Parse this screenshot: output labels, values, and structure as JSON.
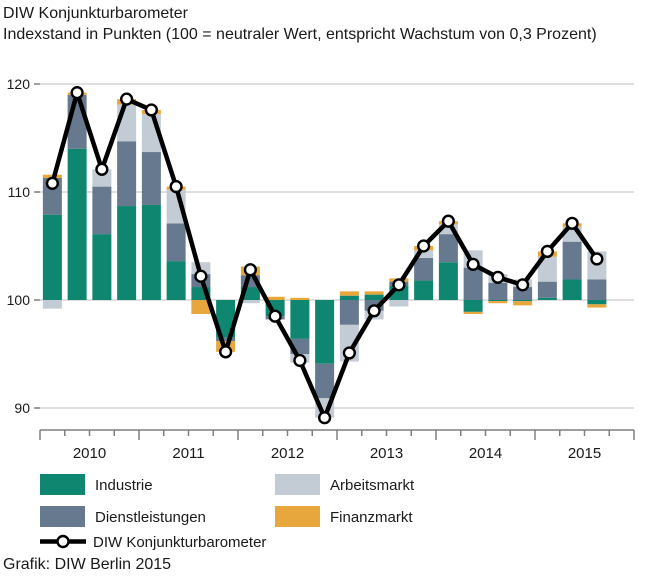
{
  "title": "DIW Konjunkturbarometer",
  "subtitle": "Indexstand in Punkten (100 = neutraler Wert, entspricht Wachstum von 0,3 Prozent)",
  "footer": "Grafik: DIW Berlin 2015",
  "colors": {
    "industrie": "#0f8670",
    "dienstleistungen": "#66798e",
    "arbeitsmarkt": "#c3ccd5",
    "finanzmarkt": "#e8a73c",
    "line": "#000000",
    "marker_fill": "#ffffff",
    "grid": "#bfbfbf",
    "axis": "#7f7f7f",
    "text": "#1a1a1a"
  },
  "legend": {
    "items": [
      {
        "key": "industrie",
        "label": "Industrie"
      },
      {
        "key": "dienstleistungen",
        "label": "Dienstleistungen"
      },
      {
        "key": "arbeitsmarkt",
        "label": "Arbeitsmarkt"
      },
      {
        "key": "finanzmarkt",
        "label": "Finanzmarkt"
      },
      {
        "key": "line",
        "label": "DIW Konjunkturbarometer"
      }
    ]
  },
  "chart_data": {
    "type": "bar",
    "subtype": "stacked-bars-with-line-overlay",
    "title": "DIW Konjunkturbarometer",
    "ylabel": "Indexstand in Punkten",
    "baseline": 100,
    "yticks": [
      90,
      100,
      110,
      120
    ],
    "ylim": [
      87,
      121
    ],
    "grid": "horizontal",
    "legend_position": "bottom",
    "years": [
      "2010",
      "2011",
      "2012",
      "2013",
      "2014",
      "2015"
    ],
    "x": [
      "2010 Q1",
      "2010 Q2",
      "2010 Q3",
      "2010 Q4",
      "2011 Q1",
      "2011 Q2",
      "2011 Q3",
      "2011 Q4",
      "2012 Q1",
      "2012 Q2",
      "2012 Q3",
      "2012 Q4",
      "2013 Q1",
      "2013 Q2",
      "2013 Q3",
      "2013 Q4",
      "2014 Q1",
      "2014 Q2",
      "2014 Q3",
      "2014 Q4",
      "2015 Q1",
      "2015 Q2",
      "2015 Q3"
    ],
    "series": [
      {
        "name": "Industrie",
        "color_key": "industrie",
        "values": [
          7.9,
          14.0,
          6.1,
          8.7,
          8.8,
          3.6,
          1.2,
          -3.5,
          1.2,
          -1.5,
          -3.6,
          -5.9,
          0.4,
          0.5,
          1.3,
          1.8,
          3.5,
          -1.1,
          -0.1,
          -0.1,
          0.2,
          1.9,
          -0.4
        ]
      },
      {
        "name": "Dienstleistungen",
        "color_key": "dienstleistungen",
        "values": [
          3.4,
          5.0,
          4.4,
          6.0,
          4.9,
          3.5,
          1.2,
          -0.3,
          1.1,
          -0.3,
          -1.4,
          -3.2,
          -2.3,
          -1.0,
          0.4,
          2.1,
          2.6,
          3.0,
          1.6,
          1.2,
          1.5,
          3.5,
          1.9
        ]
      },
      {
        "name": "Arbeitsmarkt",
        "color_key": "arbeitsmarkt",
        "values": [
          -0.8,
          0,
          1.6,
          3.4,
          3.5,
          3.1,
          1.1,
          0,
          -0.3,
          0,
          -0.8,
          -1.8,
          -3.4,
          -0.8,
          -0.6,
          0.7,
          0.9,
          1.6,
          0.8,
          0.7,
          2.3,
          1.4,
          2.6
        ]
      },
      {
        "name": "Finanzmarkt",
        "color_key": "finanzmarkt",
        "values": [
          0.3,
          0.2,
          0,
          0.5,
          0.4,
          0.3,
          -1.3,
          -1.0,
          0.8,
          0.3,
          0.2,
          0,
          0.4,
          0.3,
          0.3,
          0.4,
          0.3,
          -0.2,
          -0.2,
          -0.4,
          0.5,
          0.3,
          -0.3
        ]
      }
    ],
    "line_series": {
      "name": "DIW Konjunkturbarometer",
      "values": [
        110.8,
        119.2,
        112.1,
        118.6,
        117.6,
        110.5,
        102.2,
        95.2,
        102.8,
        98.5,
        94.4,
        89.1,
        95.1,
        99.0,
        101.4,
        105.0,
        107.3,
        103.3,
        102.1,
        101.4,
        104.5,
        107.1,
        103.8
      ]
    }
  }
}
